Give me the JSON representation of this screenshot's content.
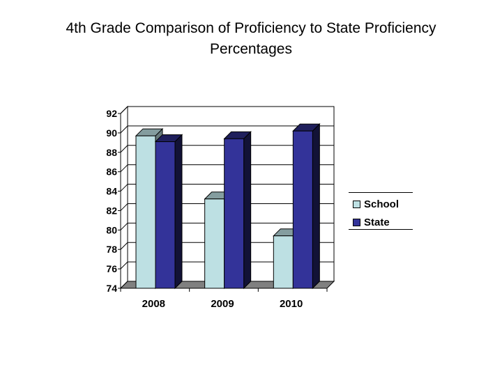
{
  "title": {
    "line1": "4th Grade Comparison of Proficiency to State Proficiency",
    "line2": "Percentages"
  },
  "chart_data": {
    "type": "bar",
    "title": "4th Grade Comparison of Proficiency to State Proficiency Percentages",
    "categories": [
      "2008",
      "2009",
      "2010"
    ],
    "series": [
      {
        "name": "School",
        "values": [
          89.7,
          83.2,
          79.4
        ],
        "color": "#bde0e3"
      },
      {
        "name": "State",
        "values": [
          89.1,
          89.4,
          90.2
        ],
        "color": "#333399"
      }
    ],
    "ylim": [
      74,
      92
    ],
    "yticks": [
      74,
      76,
      78,
      80,
      82,
      84,
      86,
      88,
      90,
      92
    ],
    "ytick_labels": [
      "74",
      "76",
      "78",
      "80",
      "82",
      "84",
      "86",
      "88",
      "90",
      "92"
    ],
    "grid": true,
    "legend_position": "right"
  }
}
